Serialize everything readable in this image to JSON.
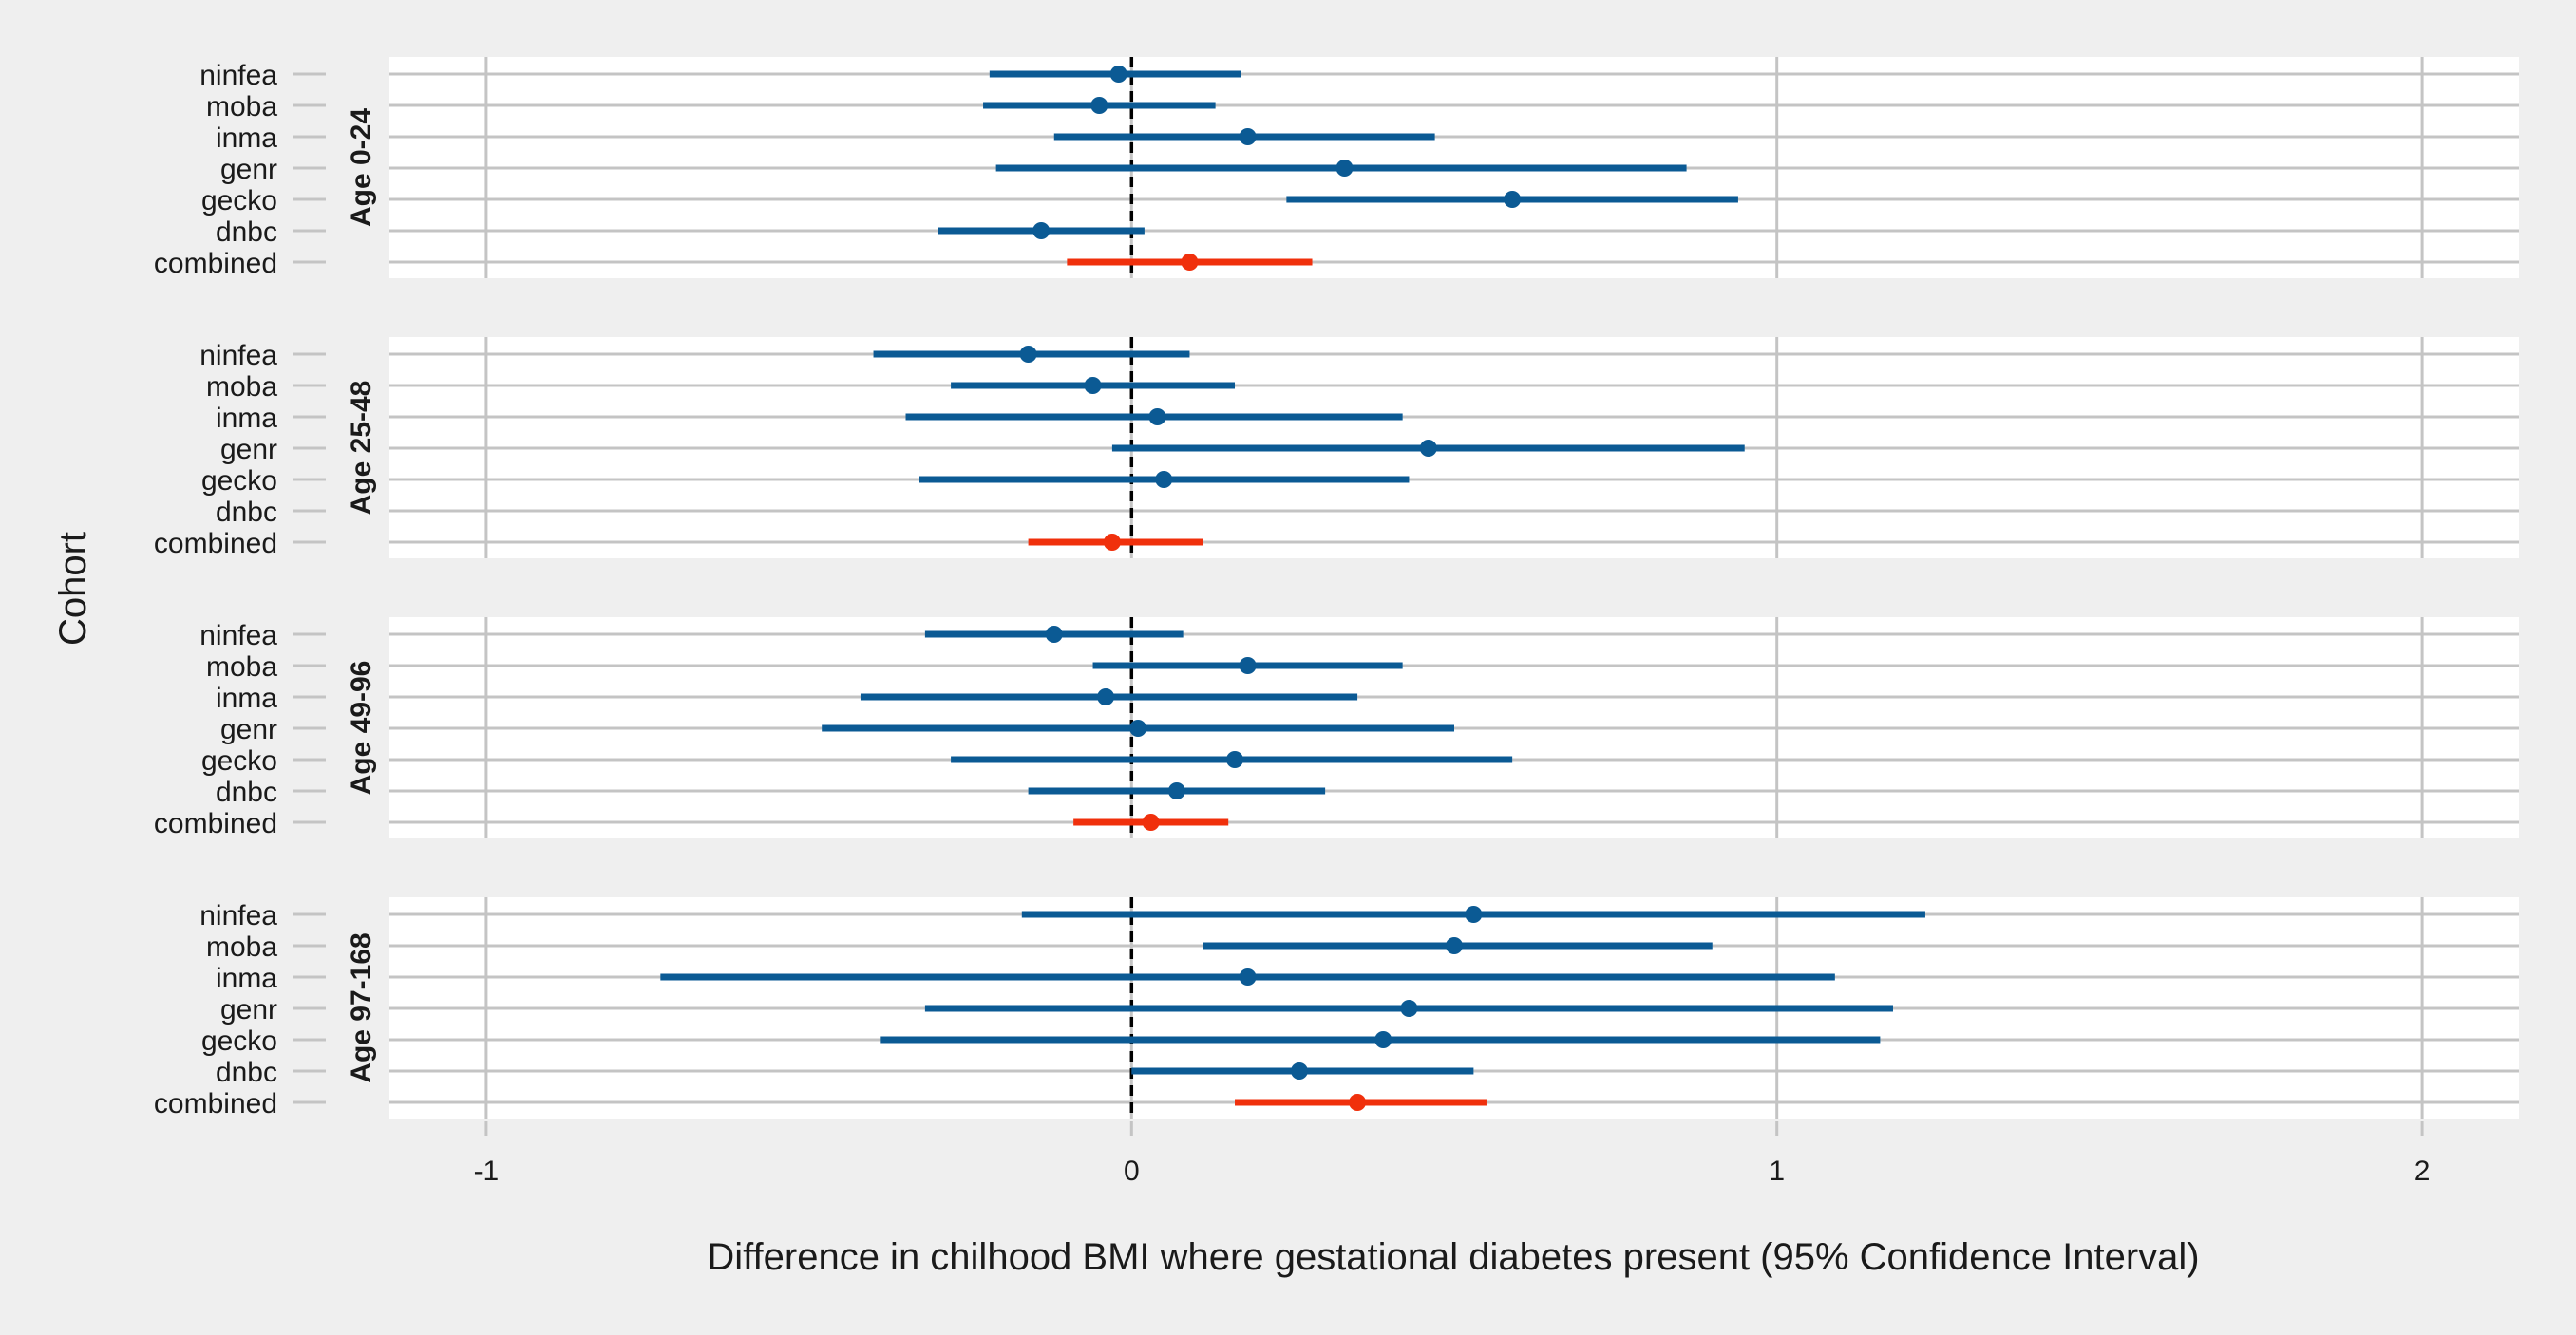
{
  "chart_data": {
    "type": "forest",
    "title": "",
    "xlabel": "Difference in chilhood BMI where gestational diabetes present (95% Confidence Interval)",
    "ylabel": "Cohort",
    "xlim": [
      -1.15,
      2.15
    ],
    "x_ticks": [
      -1,
      0,
      1,
      2
    ],
    "x_tick_labels": [
      "-1",
      "0",
      "1",
      "2"
    ],
    "reference_line": 0,
    "grid": true,
    "colors": {
      "cohort": "#0b5a94",
      "combined": "#f0300c",
      "background": "#efefef",
      "panel": "#ffffff",
      "grid": "#c4c4c4"
    },
    "categories": [
      "ninfea",
      "moba",
      "inma",
      "genr",
      "gecko",
      "dnbc",
      "combined"
    ],
    "panels": [
      {
        "label": "Age 0-24",
        "rows": [
          {
            "cohort": "ninfea",
            "est": -0.02,
            "lo": -0.22,
            "hi": 0.17
          },
          {
            "cohort": "moba",
            "est": -0.05,
            "lo": -0.23,
            "hi": 0.13
          },
          {
            "cohort": "inma",
            "est": 0.18,
            "lo": -0.12,
            "hi": 0.47
          },
          {
            "cohort": "genr",
            "est": 0.33,
            "lo": -0.21,
            "hi": 0.86
          },
          {
            "cohort": "gecko",
            "est": 0.59,
            "lo": 0.24,
            "hi": 0.94
          },
          {
            "cohort": "dnbc",
            "est": -0.14,
            "lo": -0.3,
            "hi": 0.02
          },
          {
            "cohort": "combined",
            "est": 0.09,
            "lo": -0.1,
            "hi": 0.28
          }
        ]
      },
      {
        "label": "Age 25-48",
        "rows": [
          {
            "cohort": "ninfea",
            "est": -0.16,
            "lo": -0.4,
            "hi": 0.09
          },
          {
            "cohort": "moba",
            "est": -0.06,
            "lo": -0.28,
            "hi": 0.16
          },
          {
            "cohort": "inma",
            "est": 0.04,
            "lo": -0.35,
            "hi": 0.42
          },
          {
            "cohort": "genr",
            "est": 0.46,
            "lo": -0.03,
            "hi": 0.95
          },
          {
            "cohort": "gecko",
            "est": 0.05,
            "lo": -0.33,
            "hi": 0.43
          },
          {
            "cohort": "dnbc",
            "est": null,
            "lo": null,
            "hi": null
          },
          {
            "cohort": "combined",
            "est": -0.03,
            "lo": -0.16,
            "hi": 0.11
          }
        ]
      },
      {
        "label": "Age 49-96",
        "rows": [
          {
            "cohort": "ninfea",
            "est": -0.12,
            "lo": -0.32,
            "hi": 0.08
          },
          {
            "cohort": "moba",
            "est": 0.18,
            "lo": -0.06,
            "hi": 0.42
          },
          {
            "cohort": "inma",
            "est": -0.04,
            "lo": -0.42,
            "hi": 0.35
          },
          {
            "cohort": "genr",
            "est": 0.01,
            "lo": -0.48,
            "hi": 0.5
          },
          {
            "cohort": "gecko",
            "est": 0.16,
            "lo": -0.28,
            "hi": 0.59
          },
          {
            "cohort": "dnbc",
            "est": 0.07,
            "lo": -0.16,
            "hi": 0.3
          },
          {
            "cohort": "combined",
            "est": 0.03,
            "lo": -0.09,
            "hi": 0.15
          }
        ]
      },
      {
        "label": "Age 97-168",
        "rows": [
          {
            "cohort": "ninfea",
            "est": 0.53,
            "lo": -0.17,
            "hi": 1.23
          },
          {
            "cohort": "moba",
            "est": 0.5,
            "lo": 0.11,
            "hi": 0.9
          },
          {
            "cohort": "inma",
            "est": 0.18,
            "lo": -0.73,
            "hi": 1.09
          },
          {
            "cohort": "genr",
            "est": 0.43,
            "lo": -0.32,
            "hi": 1.18
          },
          {
            "cohort": "gecko",
            "est": 0.39,
            "lo": -0.39,
            "hi": 1.16
          },
          {
            "cohort": "dnbc",
            "est": 0.26,
            "lo": 0.0,
            "hi": 0.53
          },
          {
            "cohort": "combined",
            "est": 0.35,
            "lo": 0.16,
            "hi": 0.55
          }
        ]
      }
    ]
  }
}
